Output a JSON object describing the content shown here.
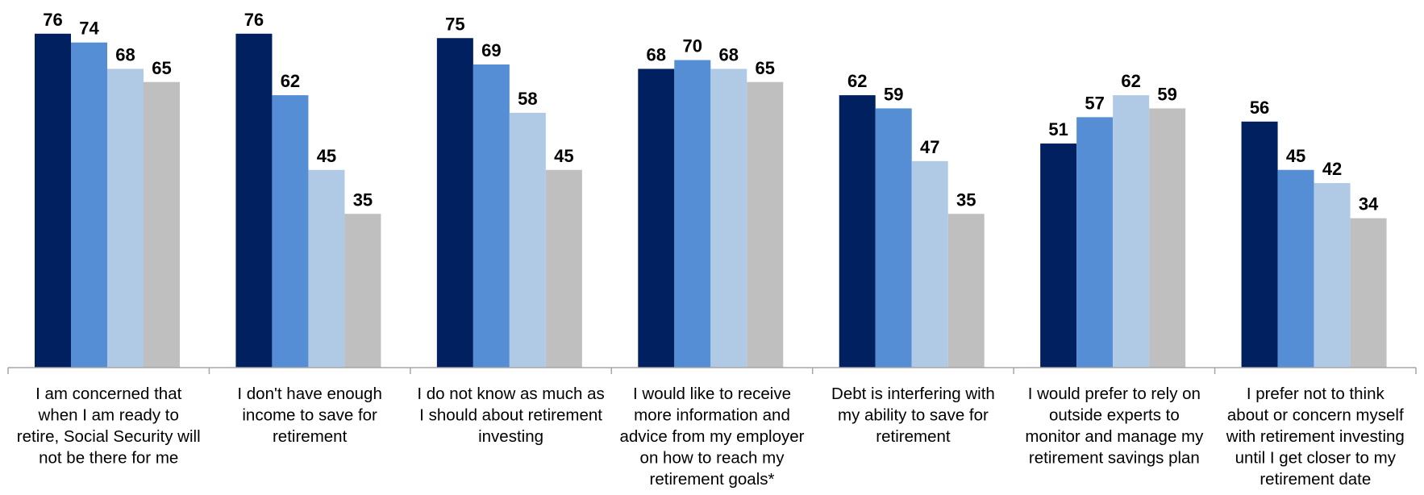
{
  "chart_data": {
    "type": "bar",
    "title": "",
    "xlabel": "",
    "ylabel": "",
    "ylim": [
      0,
      80
    ],
    "grid": false,
    "legend": "none",
    "categories": [
      [
        "I am concerned that",
        "when I am ready to",
        "retire, Social Security will",
        "not be there for me"
      ],
      [
        "I don't have enough",
        "income to save for",
        "retirement"
      ],
      [
        "I do not know as much as",
        "I should about retirement",
        "investing"
      ],
      [
        "I would like to receive",
        "more information and",
        "advice from my employer",
        "on how to reach my",
        "retirement goals*"
      ],
      [
        "Debt is interfering with",
        "my ability to save for",
        "retirement"
      ],
      [
        "I would prefer to rely on",
        "outside experts to",
        "monitor and manage my",
        "retirement savings plan"
      ],
      [
        "I prefer not to think",
        "about or concern myself",
        "with retirement investing",
        "until I get closer to my",
        "retirement date"
      ]
    ],
    "series": [
      {
        "color": "#002060",
        "values": [
          76,
          76,
          75,
          68,
          62,
          51,
          56
        ]
      },
      {
        "color": "#558ed5",
        "values": [
          74,
          62,
          69,
          70,
          59,
          57,
          45
        ]
      },
      {
        "color": "#b0cae6",
        "values": [
          68,
          45,
          58,
          68,
          47,
          62,
          42
        ]
      },
      {
        "color": "#bfbfbf",
        "values": [
          65,
          35,
          45,
          65,
          35,
          59,
          34
        ]
      }
    ]
  }
}
